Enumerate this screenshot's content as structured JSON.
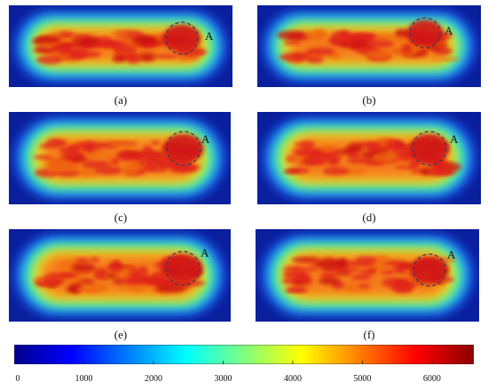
{
  "panels": [
    {
      "caption": "(a)",
      "annotation": "A"
    },
    {
      "caption": "(b)",
      "annotation": "A"
    },
    {
      "caption": "(c)",
      "annotation": "A"
    },
    {
      "caption": "(d)",
      "annotation": "A"
    },
    {
      "caption": "(e)",
      "annotation": "A"
    },
    {
      "caption": "(f)",
      "annotation": "A"
    }
  ],
  "colorbar": {
    "ticks": [
      "0",
      "1000",
      "2000",
      "3000",
      "4000",
      "5000",
      "6000"
    ],
    "range": [
      0,
      6600
    ],
    "palette": [
      "#00008b",
      "#0000ff",
      "#007fff",
      "#00ffff",
      "#7fff7f",
      "#ffff00",
      "#ff7f00",
      "#ff0000",
      "#8b0000"
    ]
  }
}
